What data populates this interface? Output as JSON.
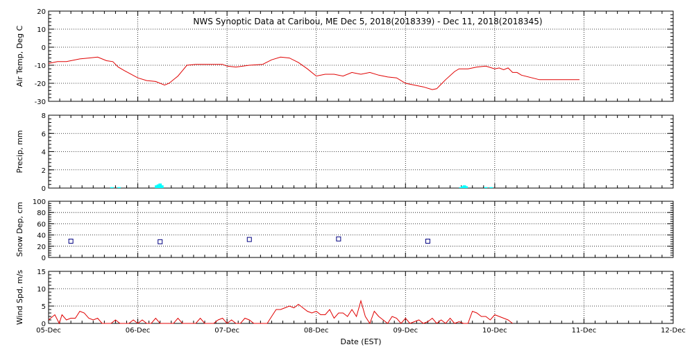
{
  "title": "NWS Synoptic Data at Caribou, ME   Dec  5, 2018(2018339) - Dec 11, 2018(2018345)",
  "x_axis": {
    "label": "Date (EST)",
    "ticks": [
      "05-Dec",
      "06-Dec",
      "07-Dec",
      "08-Dec",
      "09-Dec",
      "10-Dec",
      "11-Dec",
      "12-Dec"
    ]
  },
  "colors": {
    "line": "#e00000",
    "bar": "#00ffff",
    "marker": "#000080",
    "axis": "#000000"
  },
  "chart_data": [
    {
      "type": "line",
      "ylabel": "Air Temp, Deg C",
      "ylim": [
        -30,
        20
      ],
      "yticks": [
        20,
        10,
        0,
        -10,
        -20,
        -30
      ],
      "grid": true,
      "series": [
        {
          "x": [
            0,
            0.1,
            0.2,
            0.35,
            0.45,
            0.55,
            0.65,
            0.72,
            0.78,
            0.85,
            1.0,
            1.1,
            1.2,
            1.3,
            1.35,
            1.45,
            1.5,
            1.55,
            1.65,
            1.75,
            1.95,
            2.0,
            2.1,
            2.25,
            2.4,
            2.5,
            2.6,
            2.7,
            2.8,
            2.9,
            3.0,
            3.1,
            3.2,
            3.3,
            3.4,
            3.5,
            3.6,
            3.7,
            3.8,
            3.9,
            4.0,
            4.1,
            4.2,
            4.3,
            4.35,
            4.45,
            4.55,
            4.6,
            4.7,
            4.8,
            4.9,
            5.0,
            5.05,
            5.1,
            5.15,
            5.2,
            5.25,
            5.3,
            5.5,
            5.75,
            5.95
          ],
          "y": [
            -9,
            -8,
            -8,
            -6.5,
            -6,
            -5.5,
            -7.5,
            -8,
            -11,
            -13,
            -17,
            -18.5,
            -19,
            -21,
            -20,
            -16,
            -13,
            -10,
            -9.5,
            -9.5,
            -9.5,
            -10.5,
            -11,
            -10,
            -9.5,
            -7,
            -5.5,
            -6,
            -8.5,
            -12,
            -16,
            -15,
            -15,
            -16,
            -14,
            -15,
            -14,
            -15.5,
            -16.5,
            -17,
            -20,
            -21,
            -22,
            -23.5,
            -23,
            -18,
            -13.5,
            -12,
            -12,
            -11,
            -10.5,
            -12,
            -11.5,
            -12.5,
            -11.5,
            -14,
            -14,
            -15.5,
            -18,
            -18,
            -18
          ]
        }
      ]
    },
    {
      "type": "bar",
      "ylabel": "Precip, mm",
      "ylim": [
        0,
        8
      ],
      "yticks": [
        8,
        6,
        4,
        2,
        0
      ],
      "grid": true,
      "series": [
        {
          "x": [
            0.71,
            0.79,
            1.21,
            1.23,
            1.25,
            1.27,
            4.62,
            4.64,
            4.66,
            4.68,
            4.9,
            4.96
          ],
          "y": [
            0.1,
            0.1,
            0.3,
            0.4,
            0.5,
            0.3,
            0.1,
            0.2,
            0.3,
            0.2,
            0.1,
            0.1
          ]
        }
      ]
    },
    {
      "type": "scatter",
      "ylabel": "Snow Dep, cm",
      "ylim": [
        0,
        100
      ],
      "yticks": [
        100,
        80,
        60,
        40,
        20,
        0
      ],
      "grid": true,
      "series": [
        {
          "x": [
            0.25,
            1.25,
            2.25,
            3.25,
            4.25
          ],
          "y": [
            29,
            28,
            32,
            33,
            29
          ]
        }
      ]
    },
    {
      "type": "line",
      "ylabel": "Wind Spd, m/s",
      "ylim": [
        0,
        15
      ],
      "yticks": [
        15,
        10,
        5,
        0
      ],
      "grid": true,
      "series": [
        {
          "x": [
            0,
            0.07,
            0.12,
            0.15,
            0.2,
            0.25,
            0.3,
            0.35,
            0.4,
            0.45,
            0.5,
            0.55,
            0.6,
            0.65,
            0.7,
            0.75,
            0.8,
            0.85,
            0.9,
            0.95,
            1.0,
            1.05,
            1.1,
            1.15,
            1.2,
            1.25,
            1.3,
            1.35,
            1.4,
            1.45,
            1.5,
            1.55,
            1.6,
            1.65,
            1.7,
            1.75,
            1.8,
            1.85,
            1.9,
            1.95,
            2.0,
            2.05,
            2.1,
            2.15,
            2.2,
            2.25,
            2.3,
            2.35,
            2.4,
            2.45,
            2.5,
            2.55,
            2.6,
            2.65,
            2.7,
            2.75,
            2.8,
            2.85,
            2.9,
            2.95,
            3.0,
            3.05,
            3.1,
            3.15,
            3.2,
            3.25,
            3.3,
            3.35,
            3.4,
            3.45,
            3.5,
            3.55,
            3.6,
            3.65,
            3.7,
            3.75,
            3.8,
            3.85,
            3.9,
            3.95,
            4.0,
            4.05,
            4.1,
            4.15,
            4.2,
            4.25,
            4.3,
            4.35,
            4.4,
            4.45,
            4.5,
            4.55,
            4.6,
            4.65,
            4.7,
            4.75,
            4.8,
            4.85,
            4.9,
            4.95,
            5.0,
            5.05,
            5.1,
            5.15,
            5.2
          ],
          "y": [
            1,
            2.5,
            0,
            2.5,
            1,
            1.5,
            1.5,
            3.5,
            3,
            1.5,
            1,
            1.5,
            0,
            0,
            0,
            1,
            0,
            0,
            0,
            1,
            0,
            1,
            0,
            0,
            1.5,
            0,
            0,
            0,
            0,
            1.5,
            0,
            0,
            0,
            0,
            1.5,
            0,
            0,
            0,
            1,
            1.5,
            0,
            1,
            0,
            0,
            1.5,
            1,
            0,
            0,
            0,
            0,
            2,
            4,
            4,
            4.5,
            5,
            4.5,
            5.5,
            4.5,
            3.5,
            3,
            3.5,
            2.5,
            2.5,
            4,
            1.5,
            3,
            3,
            2,
            4,
            2,
            6.5,
            2,
            0,
            3.5,
            2,
            1,
            0,
            2,
            1.5,
            0,
            1.5,
            0,
            0.5,
            1,
            0,
            0.5,
            1.5,
            0,
            1,
            0,
            1.5,
            0,
            0.5,
            0,
            0,
            3.5,
            3,
            2,
            2,
            1,
            2.5,
            2,
            1.5,
            1,
            0
          ]
        }
      ]
    }
  ]
}
